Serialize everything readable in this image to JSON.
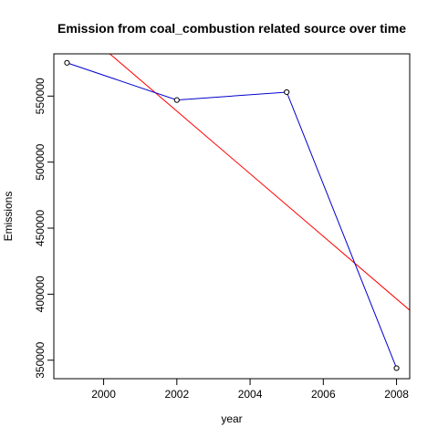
{
  "chart_data": {
    "type": "line",
    "title": "Emission from coal_combustion related source over time",
    "xlabel": "year",
    "ylabel": "Emissions",
    "xlim": [
      1998.64,
      2008.36
    ],
    "ylim": [
      336000,
      582000
    ],
    "xticks": [
      2000,
      2002,
      2004,
      2006,
      2008
    ],
    "yticks": [
      350000,
      400000,
      450000,
      500000,
      550000
    ],
    "grid": false,
    "series": [
      {
        "x": [
          1999,
          2002,
          2005,
          2008
        ],
        "values": [
          575200,
          547000,
          553000,
          344000
        ],
        "color": "#0000cc",
        "marker": "circle"
      }
    ],
    "trendline": {
      "color": "#ff0000",
      "slope": -23700,
      "intercept_at_2000": 586000
    }
  }
}
